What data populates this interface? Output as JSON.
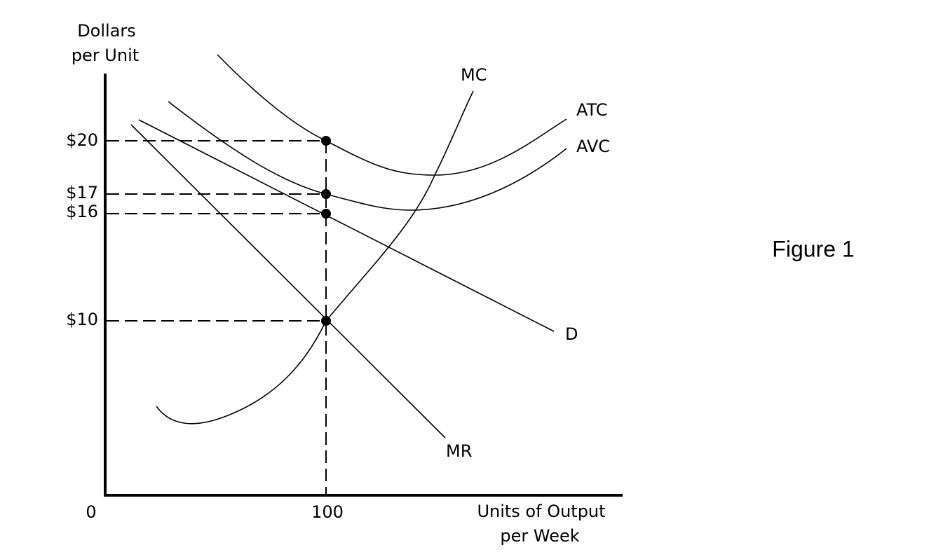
{
  "y_axis": {
    "label_lines": [
      "Dollars",
      "per Unit"
    ],
    "ticks": [
      "$20",
      "$17",
      "$16",
      "$10"
    ]
  },
  "x_axis": {
    "label_lines": [
      "Units of Output",
      "per Week"
    ],
    "ticks": [
      "0",
      "100"
    ]
  },
  "curves": [
    "MC",
    "ATC",
    "AVC",
    "D",
    "MR"
  ],
  "caption": "Figure 1"
}
